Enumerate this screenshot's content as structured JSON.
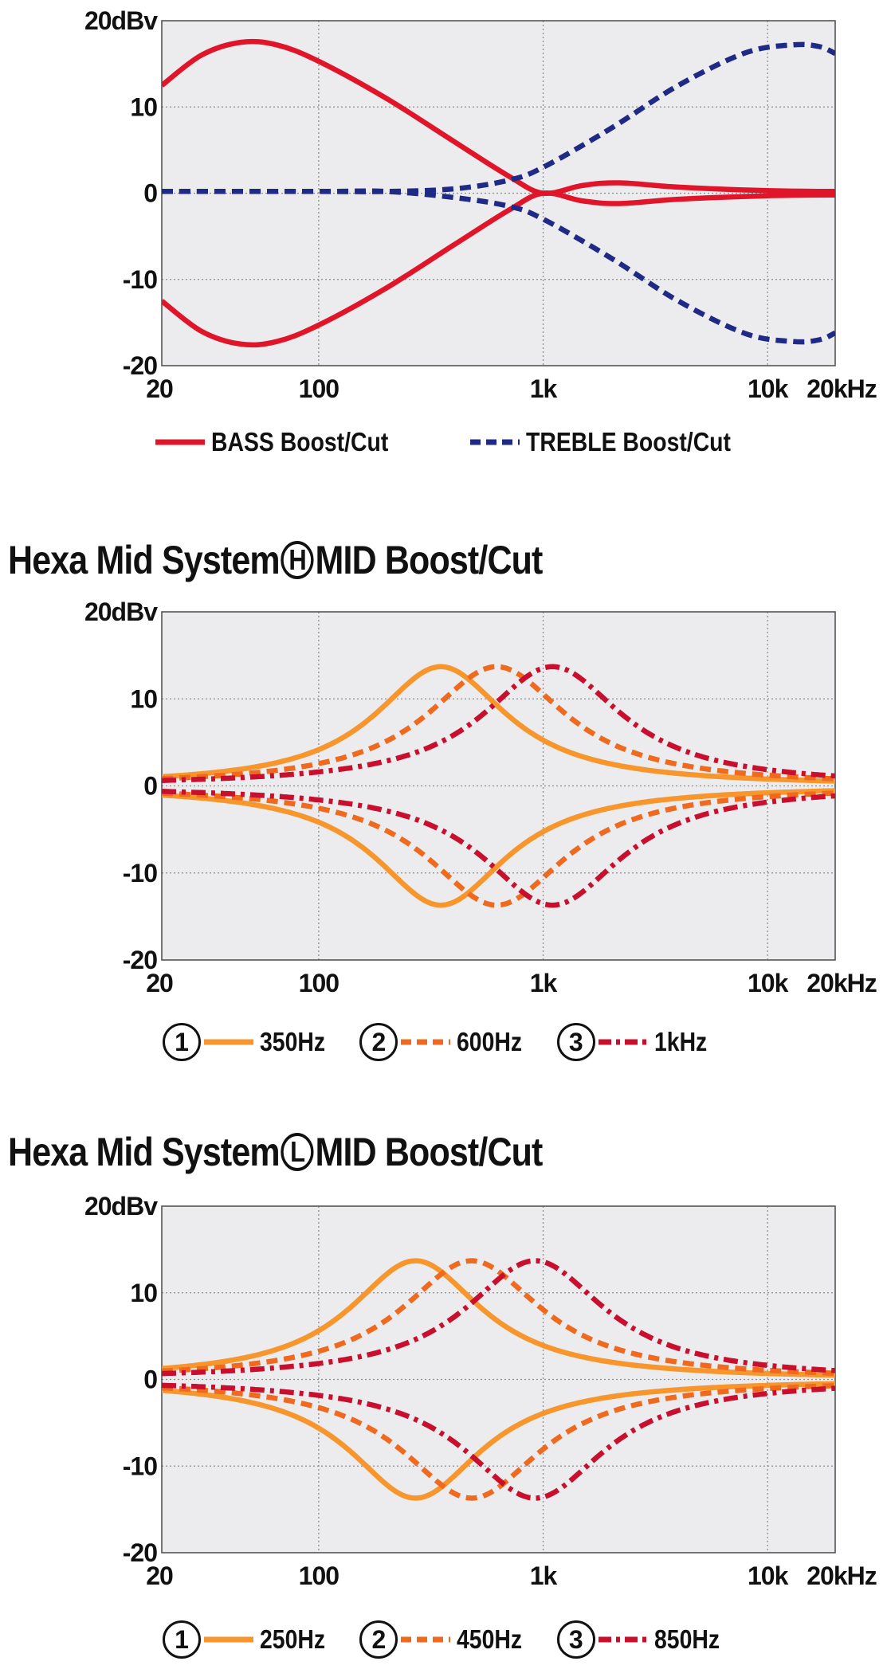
{
  "chart_data": [
    {
      "type": "line",
      "title": "",
      "xscale": "log",
      "xlim": [
        20,
        20000
      ],
      "ylim": [
        -20,
        20
      ],
      "x_ticks": [
        20,
        100,
        1000,
        10000,
        20000
      ],
      "x_tick_labels": [
        "20",
        "100",
        "1k",
        "10k",
        "20kHz"
      ],
      "y_ticks": [
        20,
        10,
        0,
        -10,
        -20
      ],
      "y_tick_labels": [
        "20dBv",
        "10",
        "0",
        "-10",
        "-20"
      ],
      "grid": true,
      "series": [
        {
          "name": "BASS Boost/Cut",
          "style": "solid",
          "color": "#e0152a",
          "curves": [
            {
              "x": [
                20,
                30,
                45,
                65,
                100,
                200,
                400,
                700,
                1000,
                1500,
                2200,
                4000,
                10000,
                20000
              ],
              "y": [
                12.5,
                16.0,
                17.5,
                17.2,
                15.3,
                11.0,
                6.0,
                2.0,
                0.0,
                0.9,
                1.2,
                0.7,
                0.3,
                0.2
              ]
            },
            {
              "x": [
                20,
                30,
                45,
                65,
                100,
                200,
                400,
                700,
                1000,
                1500,
                2200,
                4000,
                10000,
                20000
              ],
              "y": [
                -12.5,
                -16.0,
                -17.5,
                -17.2,
                -15.3,
                -11.0,
                -6.0,
                -2.0,
                0.0,
                -0.9,
                -1.2,
                -0.7,
                -0.3,
                -0.2
              ]
            }
          ]
        },
        {
          "name": "TREBLE Boost/Cut",
          "style": "dashed",
          "color": "#1f2a86",
          "curves": [
            {
              "x": [
                20,
                100,
                200,
                400,
                700,
                1000,
                2000,
                4000,
                8000,
                13000,
                17000,
                20000
              ],
              "y": [
                0.2,
                0.2,
                0.2,
                0.5,
                1.5,
                3.0,
                7.5,
                12.5,
                16.3,
                17.2,
                17.0,
                16.2
              ]
            },
            {
              "x": [
                20,
                100,
                200,
                400,
                700,
                1000,
                2000,
                4000,
                8000,
                13000,
                17000,
                20000
              ],
              "y": [
                0.2,
                0.2,
                0.2,
                -0.5,
                -1.5,
                -3.0,
                -7.5,
                -12.5,
                -16.3,
                -17.2,
                -17.0,
                -16.2
              ]
            }
          ]
        }
      ],
      "legend": {
        "placement": "bottom",
        "items": [
          {
            "label": "BASS Boost/Cut",
            "style": "solid",
            "color": "#e0152a"
          },
          {
            "label": "TREBLE Boost/Cut",
            "style": "dashed",
            "color": "#1f2a86"
          }
        ]
      }
    },
    {
      "type": "line",
      "title": "Hexa Mid System",
      "title_mark": "H",
      "title_suffix": "MID Boost/Cut",
      "xscale": "log",
      "xlim": [
        20,
        20000
      ],
      "ylim": [
        -20,
        20
      ],
      "x_ticks": [
        20,
        100,
        1000,
        10000,
        20000
      ],
      "x_tick_labels": [
        "20",
        "100",
        "1k",
        "10k",
        "20kHz"
      ],
      "y_ticks": [
        20,
        10,
        0,
        -10,
        -20
      ],
      "y_tick_labels": [
        "20dBv",
        "10",
        "0",
        "-10",
        "-20"
      ],
      "grid": true,
      "series": [
        {
          "name": "350Hz",
          "number": "1",
          "style": "solid",
          "color": "#f7962c",
          "center": 350,
          "gain": 13.7,
          "width": 0.36
        },
        {
          "name": "600Hz",
          "number": "2",
          "style": "dashed",
          "color": "#ef6a1f",
          "center": 620,
          "gain": 13.7,
          "width": 0.38
        },
        {
          "name": "1kHz",
          "number": "3",
          "style": "dashdot",
          "color": "#c8102e",
          "center": 1100,
          "gain": 13.7,
          "width": 0.38
        }
      ],
      "legend": {
        "placement": "bottom",
        "items": [
          {
            "number": "1",
            "label": "350Hz",
            "style": "solid",
            "color": "#f7962c"
          },
          {
            "number": "2",
            "label": "600Hz",
            "style": "dashed",
            "color": "#ef6a1f"
          },
          {
            "number": "3",
            "label": "1kHz",
            "style": "dashdot",
            "color": "#c8102e"
          }
        ]
      }
    },
    {
      "type": "line",
      "title": "Hexa Mid System",
      "title_mark": "L",
      "title_suffix": "MID Boost/Cut",
      "xscale": "log",
      "xlim": [
        20,
        20000
      ],
      "ylim": [
        -20,
        20
      ],
      "x_ticks": [
        20,
        100,
        1000,
        10000,
        20000
      ],
      "x_tick_labels": [
        "20",
        "100",
        "1k",
        "10k",
        "20kHz"
      ],
      "y_ticks": [
        20,
        10,
        0,
        -10,
        -20
      ],
      "y_tick_labels": [
        "20dBv",
        "10",
        "0",
        "-10",
        "-20"
      ],
      "grid": true,
      "series": [
        {
          "name": "250Hz",
          "number": "1",
          "style": "solid",
          "color": "#f7962c",
          "center": 270,
          "gain": 13.7,
          "width": 0.36
        },
        {
          "name": "450Hz",
          "number": "2",
          "style": "dashed",
          "color": "#ef6a1f",
          "center": 480,
          "gain": 13.7,
          "width": 0.38
        },
        {
          "name": "850Hz",
          "number": "3",
          "style": "dashdot",
          "color": "#c8102e",
          "center": 920,
          "gain": 13.7,
          "width": 0.38
        }
      ],
      "legend": {
        "placement": "bottom",
        "items": [
          {
            "number": "1",
            "label": "250Hz",
            "style": "solid",
            "color": "#f7962c"
          },
          {
            "number": "2",
            "label": "450Hz",
            "style": "dashed",
            "color": "#ef6a1f"
          },
          {
            "number": "3",
            "label": "850Hz",
            "style": "dashdot",
            "color": "#c8102e"
          }
        ]
      }
    }
  ]
}
